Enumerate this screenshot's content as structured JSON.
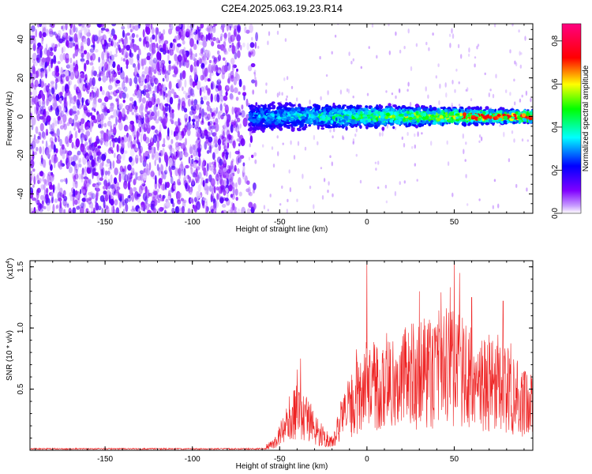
{
  "figure": {
    "title": "C2E4.2025.063.19.23.R14"
  },
  "chart_data": [
    {
      "type": "heatmap",
      "xlabel": "Height of straight line (km)",
      "ylabel": "Frequency (Hz)",
      "xlim": [
        -193,
        95
      ],
      "ylim": [
        -50,
        48
      ],
      "xticks": [
        -150,
        -100,
        -50,
        0,
        50
      ],
      "yticks": [
        -40,
        -20,
        0,
        20,
        40
      ],
      "colorbar": {
        "label": "Normalized spectral amplitude",
        "range": [
          0.0,
          0.88
        ],
        "ticks": [
          0.0,
          0.2,
          0.4,
          0.6,
          0.8
        ],
        "colormap": [
          "#ffffff",
          "#8000ff",
          "#0000ff",
          "#00ffff",
          "#00ff00",
          "#ffff00",
          "#ff0000",
          "#ff0080"
        ]
      },
      "description_regions": [
        {
          "x_range": [
            -193,
            -67
          ],
          "freq_range": [
            -50,
            48
          ],
          "amplitude": 0.02
        },
        {
          "x_range": [
            -67,
            95
          ],
          "freq_center": 0,
          "freq_halfwidth": 8,
          "amplitude_peak": 0.85
        }
      ]
    },
    {
      "type": "line",
      "xlabel": "Height of straight line (km)",
      "ylabel": "SNR (10 * v/v)",
      "y_multiplier_label": "(x10",
      "y_multiplier_exp": "4",
      "y_multiplier_close": ")",
      "xlim": [
        -193,
        95
      ],
      "ylim": [
        0,
        1.55
      ],
      "xticks": [
        -150,
        -100,
        -50,
        0,
        50
      ],
      "yticks": [
        0.5,
        1.0,
        1.5
      ],
      "ytick_labels": [
        "0.5",
        "1.0",
        "1.5"
      ],
      "series": [
        {
          "color": "#ee2222",
          "envelope": [
            {
              "x": -193,
              "y": 0.01
            },
            {
              "x": -60,
              "y": 0.02
            },
            {
              "x": -52,
              "y": 0.12
            },
            {
              "x": -48,
              "y": 0.3
            },
            {
              "x": -40,
              "y": 0.55
            },
            {
              "x": -35,
              "y": 0.5
            },
            {
              "x": -30,
              "y": 0.3
            },
            {
              "x": -20,
              "y": 0.1
            },
            {
              "x": -15,
              "y": 0.4
            },
            {
              "x": -10,
              "y": 0.6
            },
            {
              "x": 0,
              "y": 0.9
            },
            {
              "x": 10,
              "y": 0.95
            },
            {
              "x": 30,
              "y": 1.1
            },
            {
              "x": 48,
              "y": 1.2
            },
            {
              "x": 60,
              "y": 1.0
            },
            {
              "x": 75,
              "y": 0.95
            },
            {
              "x": 90,
              "y": 0.7
            },
            {
              "x": 95,
              "y": 0.6
            }
          ],
          "peaks": [
            {
              "x": 0,
              "y": 1.55
            },
            {
              "x": 50,
              "y": 1.58
            },
            {
              "x": 53,
              "y": 1.45
            },
            {
              "x": 30,
              "y": 1.3
            },
            {
              "x": 60,
              "y": 1.25
            },
            {
              "x": 78,
              "y": 1.22
            },
            {
              "x": -40,
              "y": 0.66
            },
            {
              "x": -38,
              "y": 0.75
            }
          ]
        }
      ]
    }
  ]
}
